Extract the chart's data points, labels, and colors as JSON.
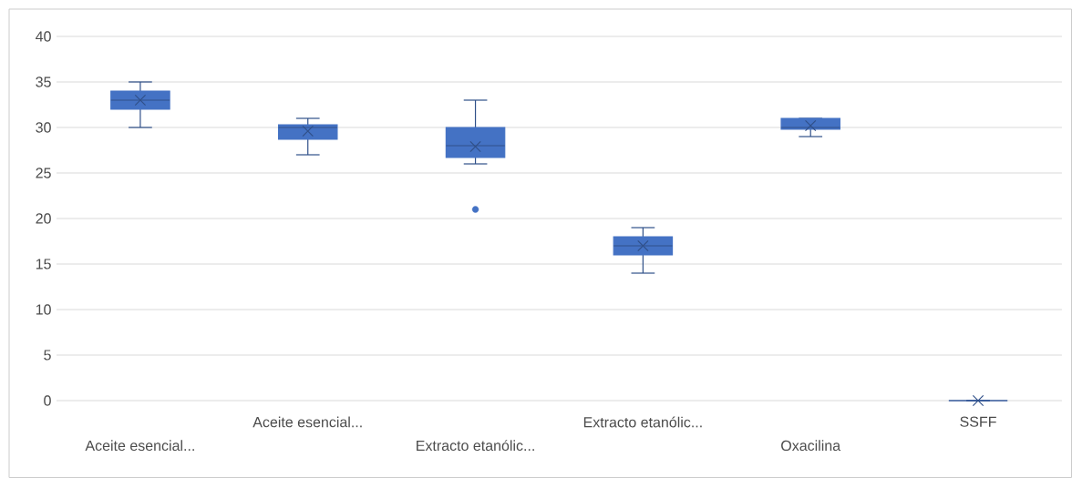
{
  "chart_data": {
    "type": "box",
    "categories": [
      "Aceite esencial...",
      "Aceite esencial...",
      "Extracto etanólic...",
      "Extracto etanólic...",
      "Oxacilina",
      "SSFF"
    ],
    "boxes": [
      {
        "low": 30,
        "q1": 32,
        "median": 33,
        "q3": 34,
        "high": 35,
        "mean": 33
      },
      {
        "low": 27,
        "q1": 28.7,
        "median": 30,
        "q3": 30.3,
        "high": 31,
        "mean": 29.6
      },
      {
        "low": 26,
        "q1": 26.7,
        "median": 28,
        "q3": 30,
        "high": 33,
        "mean": 27.9,
        "outliers": [
          21
        ]
      },
      {
        "low": 14,
        "q1": 16,
        "median": 17,
        "q3": 18,
        "high": 19,
        "mean": 17
      },
      {
        "low": 29,
        "q1": 29.8,
        "median": 30,
        "q3": 31,
        "high": 31,
        "mean": 30.2
      },
      {
        "low": 0,
        "q1": 0,
        "median": 0,
        "q3": 0,
        "high": 0,
        "mean": 0
      }
    ],
    "color": "#4472c4",
    "ylim": [
      0,
      40
    ],
    "yticks": [
      0,
      5,
      10,
      15,
      20,
      25,
      30,
      35,
      40
    ],
    "grid": "y"
  }
}
